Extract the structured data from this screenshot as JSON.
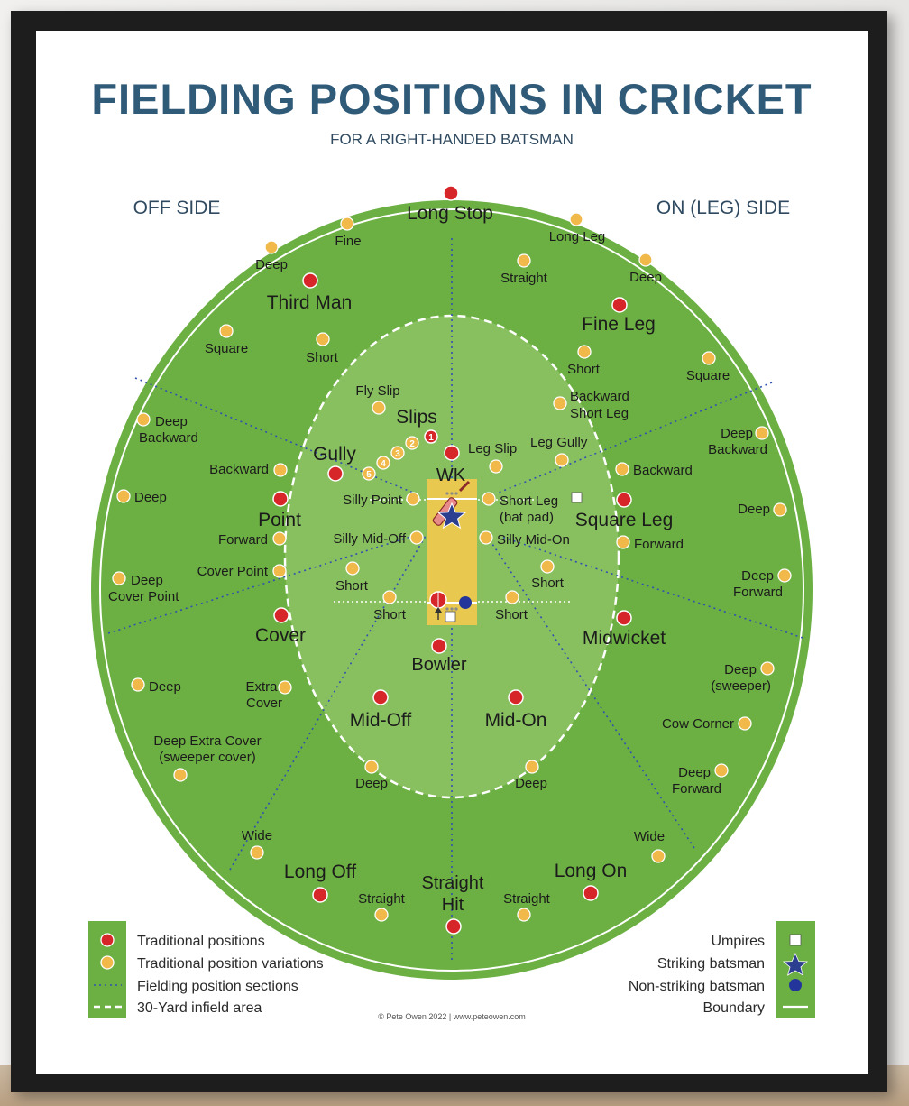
{
  "title": "FIELDING POSITIONS IN CRICKET",
  "subtitle": "FOR A RIGHT-HANDED BATSMAN",
  "sides": {
    "off": "OFF SIDE",
    "on": "ON (LEG) SIDE"
  },
  "colors": {
    "title": "#2f5a78",
    "outfield": "#6cb043",
    "infield": "#88c060",
    "pitch": "#e8c84f",
    "traditional_dot": "#d7262a",
    "variation_dot": "#f1b94a",
    "section_line": "#3050b0",
    "umpire": "#ffffff",
    "striking_batsman": "#2c3e8f",
    "non_striking_batsman": "#23359a",
    "boundary": "#ffffff"
  },
  "positions": {
    "long_stop": "Long Stop",
    "third_man": "Third Man",
    "fine_leg": "Fine Leg",
    "slips": "Slips",
    "gully": "Gully",
    "wk": "WK",
    "point": "Point",
    "square_leg": "Square Leg",
    "cover": "Cover",
    "midwicket": "Midwicket",
    "bowler": "Bowler",
    "mid_off": "Mid-Off",
    "mid_on": "Mid-On",
    "long_off": "Long Off",
    "long_on": "Long On",
    "straight_hit_1": "Straight",
    "straight_hit_2": "Hit"
  },
  "variations": {
    "fine": "Fine",
    "deep_tm": "Deep",
    "long_leg": "Long Leg",
    "straight_ll": "Straight",
    "deep_fl": "Deep",
    "square_tm": "Square",
    "short_tm": "Short",
    "short_fl": "Short",
    "square_fl": "Square",
    "fly_slip": "Fly Slip",
    "backward_short_leg_1": "Backward",
    "backward_short_leg_2": "Short Leg",
    "deep_backward_off_1": "Deep",
    "deep_backward_off_2": "Backward",
    "leg_slip": "Leg Slip",
    "leg_gully": "Leg Gully",
    "deep_backward_leg_1": "Deep",
    "deep_backward_leg_2": "Backward",
    "backward_off": "Backward",
    "backward_leg": "Backward",
    "deep_point": "Deep",
    "silly_point": "Silly Point",
    "short_leg_1": "Short Leg",
    "short_leg_2": "(bat pad)",
    "deep_square_leg": "Deep",
    "forward_off": "Forward",
    "silly_mid_off": "Silly Mid-Off",
    "silly_mid_on": "Silly Mid-On",
    "forward_leg": "Forward",
    "deep_cover_point_1": "Deep",
    "deep_cover_point_2": "Cover Point",
    "cover_point": "Cover Point",
    "short_cover": "Short",
    "short_mw": "Short",
    "deep_forward_1": "Deep",
    "deep_forward_2": "Forward",
    "short_mid_off": "Short",
    "short_mid_on": "Short",
    "deep_cover": "Deep",
    "extra_cover_1": "Extra",
    "extra_cover_2": "Cover",
    "deep_sweeper_1": "Deep",
    "deep_sweeper_2": "(sweeper)",
    "cow_corner": "Cow Corner",
    "deep_extra_cover_1": "Deep Extra Cover",
    "deep_extra_cover_2": "(sweeper cover)",
    "deep_mid_off": "Deep",
    "deep_mid_on": "Deep",
    "deep_forward_mw_1": "Deep",
    "deep_forward_mw_2": "Forward",
    "wide_off": "Wide",
    "wide_on": "Wide",
    "straight_lo": "Straight",
    "straight_lon": "Straight"
  },
  "slip_numbers": [
    "1",
    "2",
    "3",
    "4",
    "5"
  ],
  "legend_left": [
    "Traditional positions",
    "Traditional position variations",
    "Fielding position sections",
    "30-Yard infield area"
  ],
  "legend_right": [
    "Umpires",
    "Striking batsman",
    "Non-striking batsman",
    "Boundary"
  ],
  "credit": "© Pete Owen 2022 | www.peteowen.com"
}
